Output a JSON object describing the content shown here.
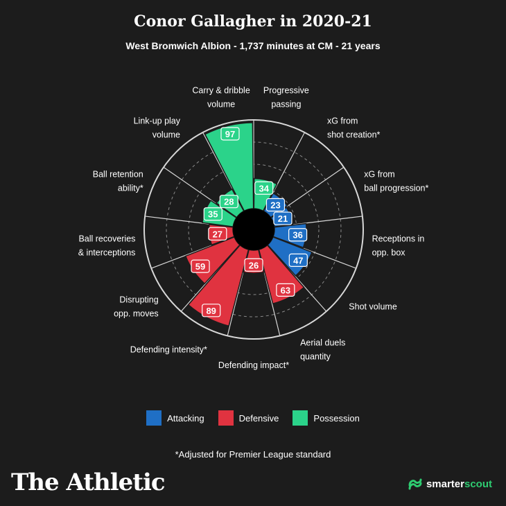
{
  "header": {
    "title": "Conor Gallagher in 2020-21",
    "subtitle": "West Bromwich Albion - 1,737 minutes at CM - 21 years"
  },
  "colors": {
    "attacking": "#1f6fc5",
    "defensive": "#e03340",
    "possession": "#2bd38a",
    "background": "#1c1c1c",
    "ring": "#d8d8d8",
    "grid": "#8a8a8a"
  },
  "chart_data": {
    "type": "radial_bar",
    "max": 100,
    "categories": [
      {
        "label": [
          "Progressive",
          "passing"
        ],
        "value": 34,
        "group": "possession"
      },
      {
        "label": [
          "xG from",
          "shot creation*"
        ],
        "value": 23,
        "group": "attacking"
      },
      {
        "label": [
          "xG from",
          "ball progression*"
        ],
        "value": 21,
        "group": "attacking"
      },
      {
        "label": [
          "Receptions in",
          "opp. box"
        ],
        "value": 36,
        "group": "attacking"
      },
      {
        "label": [
          "Shot volume"
        ],
        "value": 47,
        "group": "attacking"
      },
      {
        "label": [
          "Aerial duels",
          "quantity"
        ],
        "value": 63,
        "group": "defensive"
      },
      {
        "label": [
          "Defending impact*"
        ],
        "value": 26,
        "group": "defensive"
      },
      {
        "label": [
          "Defending intensity*"
        ],
        "value": 89,
        "group": "defensive"
      },
      {
        "label": [
          "Disrupting",
          "opp. moves"
        ],
        "value": 59,
        "group": "defensive"
      },
      {
        "label": [
          "Ball recoveries",
          "& interceptions"
        ],
        "value": 27,
        "group": "defensive"
      },
      {
        "label": [
          "Ball retention",
          "ability*"
        ],
        "value": 35,
        "group": "possession"
      },
      {
        "label": [
          "Link-up play",
          "volume"
        ],
        "value": 28,
        "group": "possession"
      },
      {
        "label": [
          "Carry & dribble",
          "volume"
        ],
        "value": 97,
        "group": "possession"
      }
    ]
  },
  "legend": [
    {
      "key": "attacking",
      "label": "Attacking"
    },
    {
      "key": "defensive",
      "label": "Defensive"
    },
    {
      "key": "possession",
      "label": "Possession"
    }
  ],
  "footnote": "*Adjusted for Premier League standard",
  "branding": {
    "publisher": "The Athletic",
    "partner_prefix": "smarter",
    "partner_suffix": "scout",
    "partner_icon": "smarterscout-logo-icon"
  }
}
